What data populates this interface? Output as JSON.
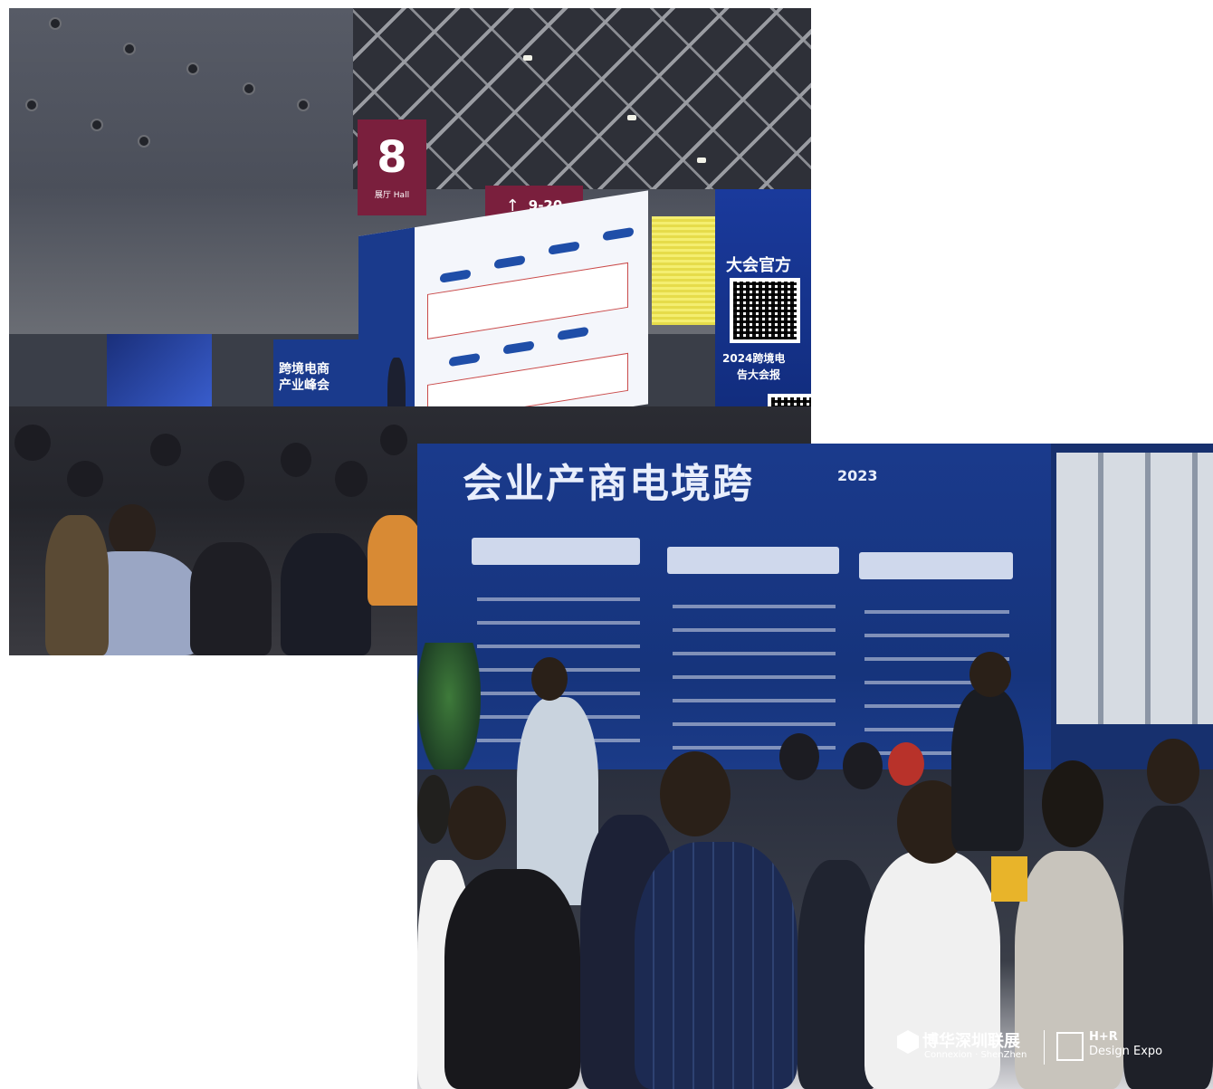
{
  "photo_top": {
    "hall_sign": {
      "number": "8",
      "label": "展厅 Hall"
    },
    "direction_sign": {
      "arrow": "↑",
      "range": "9-20"
    },
    "left_backdrop_title": "跨境电商\n产业峰会",
    "screen_title_line1": "大会官方",
    "screen_title_line2": "2024跨境电",
    "screen_title_line3": "告大会报"
  },
  "photo_bottom": {
    "backdrop_title_mirrored": "会业产商电境跨",
    "backdrop_year": "2023",
    "watermark": {
      "cn": "博华深圳联展",
      "en": "Connexion · ShenZhen",
      "hr_line1": "H+R",
      "hr_line2": "Design Expo"
    }
  },
  "colors": {
    "stage_blue": "#1a3a8c",
    "hall_sign_maroon": "#7a1f3d",
    "ceiling_grey": "#4a4e58"
  }
}
